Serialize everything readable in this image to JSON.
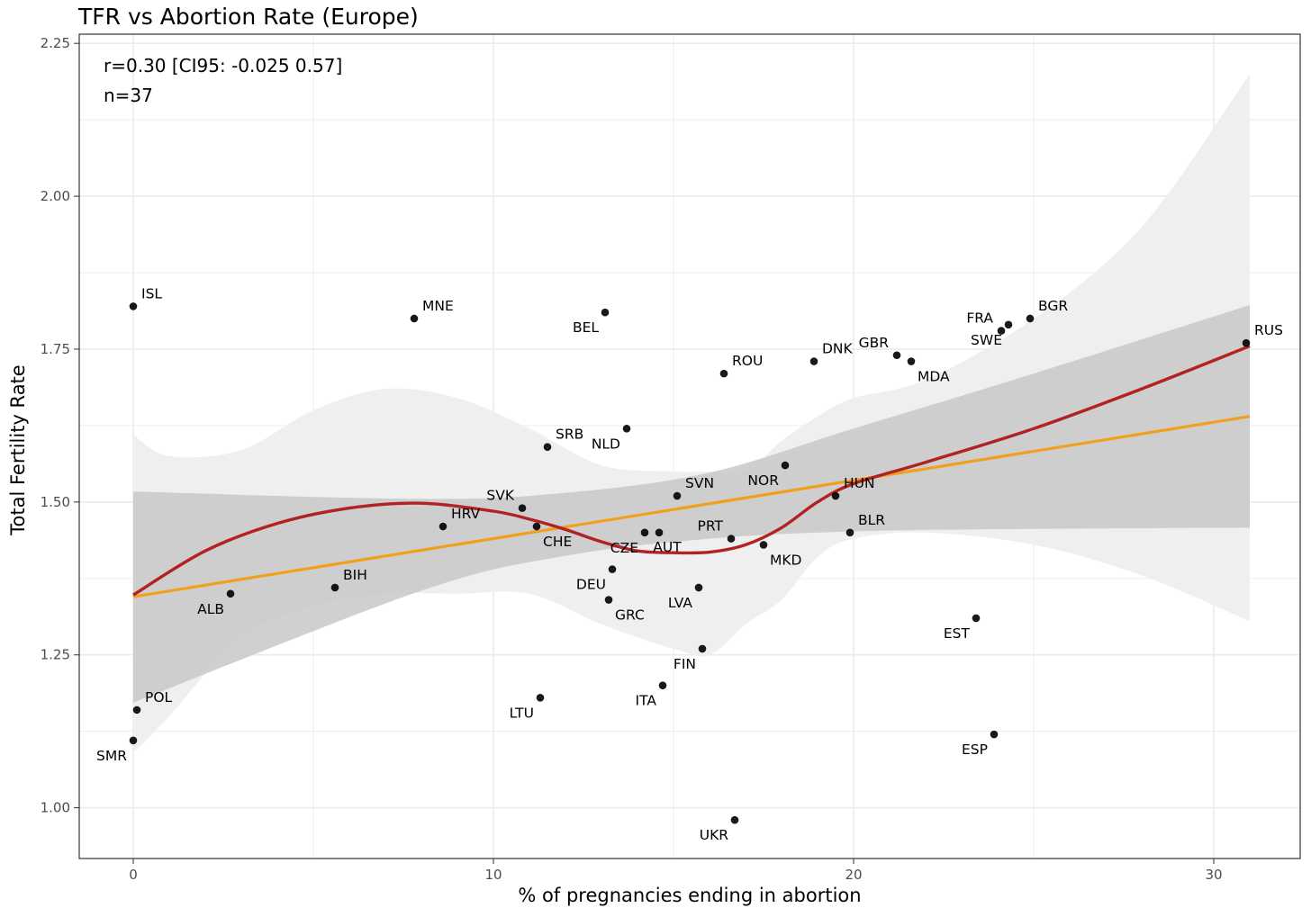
{
  "chart_data": {
    "type": "scatter",
    "title": "TFR vs Abortion Rate (Europe)",
    "xlabel": "% of pregnancies ending in abortion",
    "ylabel": "Total Fertility Rate",
    "xlim": [
      -1.5,
      32.4
    ],
    "ylim": [
      0.917,
      2.265
    ],
    "xticks": [
      0,
      10,
      20,
      30
    ],
    "yticks": [
      1.0,
      1.25,
      1.5,
      1.75,
      2.0,
      2.25
    ],
    "ytick_labels": [
      "1.00",
      "1.25",
      "1.50",
      "1.75",
      "2.00",
      "2.25"
    ],
    "grid": true,
    "annotations": [
      "r=0.30 [CI95: -0.025 0.57]",
      "n=37"
    ],
    "points": [
      {
        "label": "ISL",
        "x": 0.0,
        "y": 1.82,
        "pos": "ur"
      },
      {
        "label": "MNE",
        "x": 7.8,
        "y": 1.8,
        "pos": "ur"
      },
      {
        "label": "BEL",
        "x": 13.1,
        "y": 1.81,
        "pos": "ll"
      },
      {
        "label": "ROU",
        "x": 16.4,
        "y": 1.71,
        "pos": "ur"
      },
      {
        "label": "DNK",
        "x": 18.9,
        "y": 1.73,
        "pos": "ur"
      },
      {
        "label": "GBR",
        "x": 21.2,
        "y": 1.74,
        "pos": "ul"
      },
      {
        "label": "MDA",
        "x": 21.6,
        "y": 1.73,
        "pos": "lr"
      },
      {
        "label": "FRA",
        "x": 24.1,
        "y": 1.78,
        "pos": "ul"
      },
      {
        "label": "SWE",
        "x": 24.3,
        "y": 1.79,
        "pos": "ll"
      },
      {
        "label": "BGR",
        "x": 24.9,
        "y": 1.8,
        "pos": "ur"
      },
      {
        "label": "RUS",
        "x": 30.9,
        "y": 1.76,
        "pos": "ur"
      },
      {
        "label": "SRB",
        "x": 11.5,
        "y": 1.59,
        "pos": "ur"
      },
      {
        "label": "NLD",
        "x": 13.7,
        "y": 1.62,
        "pos": "ll"
      },
      {
        "label": "NOR",
        "x": 18.1,
        "y": 1.56,
        "pos": "ll"
      },
      {
        "label": "SVN",
        "x": 15.1,
        "y": 1.51,
        "pos": "ur"
      },
      {
        "label": "HUN",
        "x": 19.5,
        "y": 1.51,
        "pos": "ur"
      },
      {
        "label": "SVK",
        "x": 10.8,
        "y": 1.49,
        "pos": "ul"
      },
      {
        "label": "HRV",
        "x": 8.6,
        "y": 1.46,
        "pos": "ur"
      },
      {
        "label": "CHE",
        "x": 11.2,
        "y": 1.46,
        "pos": "lr"
      },
      {
        "label": "CZE",
        "x": 14.2,
        "y": 1.45,
        "pos": "ll"
      },
      {
        "label": "AUT",
        "x": 14.6,
        "y": 1.45,
        "pos": "lc"
      },
      {
        "label": "BLR",
        "x": 19.9,
        "y": 1.45,
        "pos": "ur"
      },
      {
        "label": "PRT",
        "x": 16.6,
        "y": 1.44,
        "pos": "ul"
      },
      {
        "label": "MKD",
        "x": 17.5,
        "y": 1.43,
        "pos": "lr"
      },
      {
        "label": "BIH",
        "x": 5.6,
        "y": 1.36,
        "pos": "ur"
      },
      {
        "label": "ALB",
        "x": 2.7,
        "y": 1.35,
        "pos": "ll"
      },
      {
        "label": "DEU",
        "x": 13.3,
        "y": 1.39,
        "pos": "ll"
      },
      {
        "label": "GRC",
        "x": 13.2,
        "y": 1.34,
        "pos": "lr"
      },
      {
        "label": "LVA",
        "x": 15.7,
        "y": 1.36,
        "pos": "ll"
      },
      {
        "label": "EST",
        "x": 23.4,
        "y": 1.31,
        "pos": "ll"
      },
      {
        "label": "FIN",
        "x": 15.8,
        "y": 1.26,
        "pos": "ll"
      },
      {
        "label": "ITA",
        "x": 14.7,
        "y": 1.2,
        "pos": "ll"
      },
      {
        "label": "LTU",
        "x": 11.3,
        "y": 1.18,
        "pos": "ll"
      },
      {
        "label": "POL",
        "x": 0.1,
        "y": 1.16,
        "pos": "ur"
      },
      {
        "label": "SMR",
        "x": 0.0,
        "y": 1.11,
        "pos": "ll"
      },
      {
        "label": "ESP",
        "x": 23.9,
        "y": 1.12,
        "pos": "ll"
      },
      {
        "label": "UKR",
        "x": 16.7,
        "y": 0.98,
        "pos": "ll"
      }
    ],
    "linear_fit": {
      "x": [
        0,
        31
      ],
      "y": [
        1.345,
        1.64
      ]
    },
    "linear_ci": {
      "x": [
        0,
        8,
        12,
        16,
        20,
        25,
        31
      ],
      "lower": [
        1.172,
        1.355,
        1.412,
        1.44,
        1.452,
        1.456,
        1.458
      ],
      "upper": [
        1.517,
        1.505,
        1.515,
        1.548,
        1.62,
        1.71,
        1.822
      ]
    },
    "loess_fit": {
      "x": [
        0,
        2,
        4,
        6,
        8,
        10,
        11,
        12,
        13,
        14,
        15,
        16,
        17,
        18,
        19,
        20,
        22,
        25,
        28,
        31
      ],
      "y": [
        1.348,
        1.42,
        1.465,
        1.49,
        1.498,
        1.485,
        1.472,
        1.455,
        1.435,
        1.42,
        1.417,
        1.418,
        1.43,
        1.458,
        1.5,
        1.53,
        1.565,
        1.62,
        1.685,
        1.755
      ]
    },
    "loess_ci": {
      "x": [
        0,
        1,
        3,
        5,
        7,
        9,
        11,
        13,
        15,
        16,
        17,
        18,
        19,
        20,
        22,
        25,
        28,
        31
      ],
      "lower": [
        1.09,
        1.15,
        1.28,
        1.33,
        1.35,
        1.35,
        1.35,
        1.3,
        1.26,
        1.25,
        1.3,
        1.34,
        1.41,
        1.44,
        1.45,
        1.43,
        1.38,
        1.305
      ],
      "upper": [
        1.61,
        1.575,
        1.585,
        1.65,
        1.685,
        1.67,
        1.62,
        1.56,
        1.55,
        1.55,
        1.55,
        1.6,
        1.64,
        1.67,
        1.7,
        1.8,
        1.95,
        2.2
      ]
    },
    "colors": {
      "linear": "#f0a01c",
      "loess": "#b22222",
      "linear_band": "#c8c8c8",
      "loess_band": "#efefef",
      "point": "#000000",
      "grid": "#ebebeb",
      "axis_frame": "#333333"
    }
  }
}
